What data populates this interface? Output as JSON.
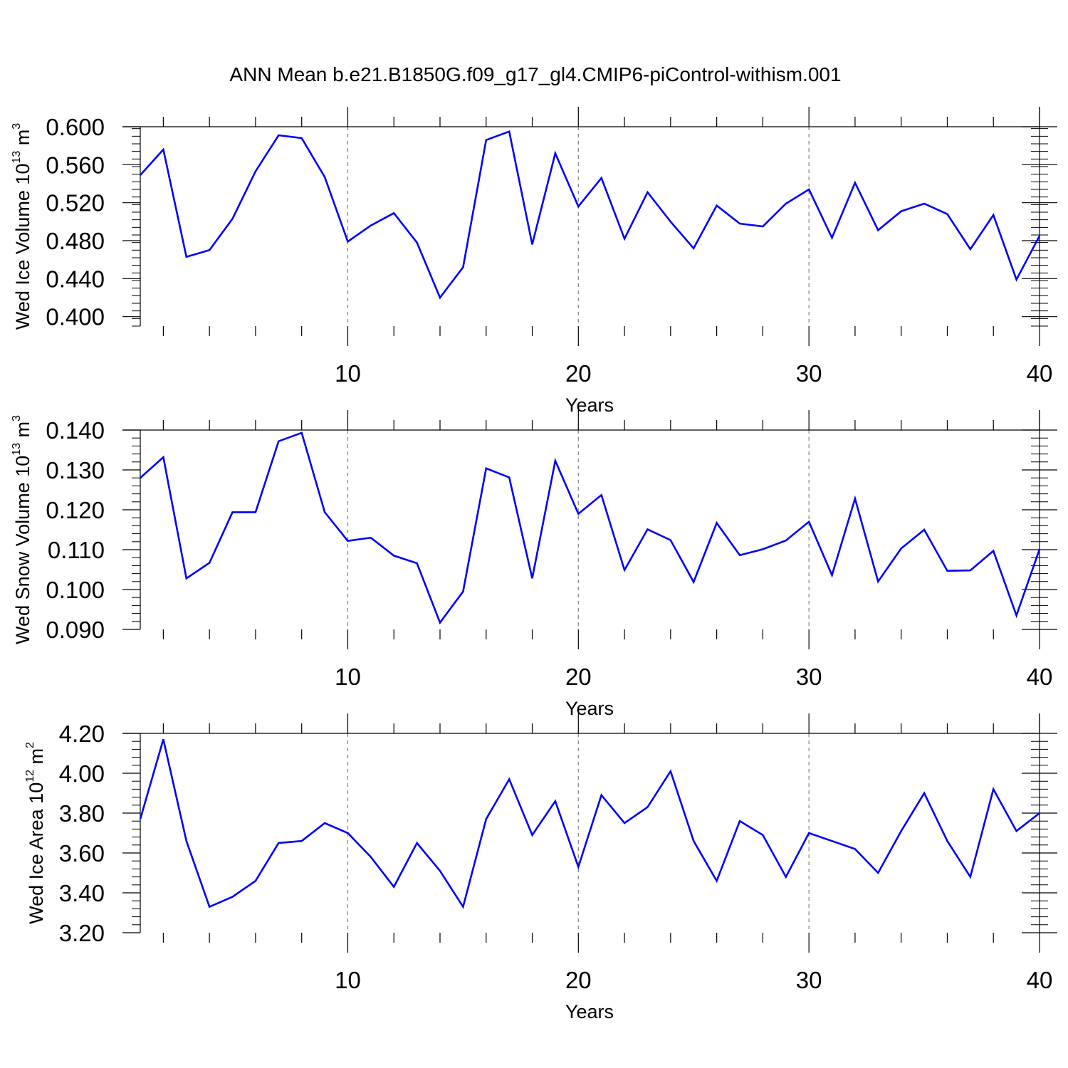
{
  "figure_title": "ANN Mean b.e21.B1850G.f09_g17_gl4.CMIP6-piControl-withism.001",
  "colors": {
    "line": "#0000ff",
    "axis": "#000000",
    "grid": "#808080",
    "background": "#ffffff"
  },
  "chart_data": [
    {
      "type": "line",
      "title": "ANN Mean b.e21.B1850G.f09_g17_gl4.CMIP6-piControl-withism.001",
      "xlabel": "Years",
      "ylabel": {
        "base": "Wed Ice Volume 10",
        "exp": "13",
        "unit": " m",
        "unit_exp": "3"
      },
      "xlim": [
        1,
        40
      ],
      "ylim": [
        0.39,
        0.6
      ],
      "xticks": [
        10,
        20,
        30,
        40
      ],
      "xtick_labels": [
        "10",
        "20",
        "30",
        "40"
      ],
      "yticks": [
        0.4,
        0.44,
        0.48,
        0.52,
        0.56,
        0.6
      ],
      "ytick_labels": [
        "0.400",
        "0.440",
        "0.480",
        "0.520",
        "0.560",
        "0.600"
      ],
      "grid": "dashed vertical at major x ticks",
      "series": [
        {
          "color": "#0000ff",
          "x": [
            1,
            2,
            3,
            4,
            5,
            6,
            7,
            8,
            9,
            10,
            11,
            12,
            13,
            14,
            15,
            16,
            17,
            18,
            19,
            20,
            21,
            22,
            23,
            24,
            25,
            26,
            27,
            28,
            29,
            30,
            31,
            32,
            33,
            34,
            35,
            36,
            37,
            38,
            39,
            40
          ],
          "values": [
            0.549,
            0.576,
            0.463,
            0.47,
            0.503,
            0.553,
            0.591,
            0.588,
            0.547,
            0.479,
            0.496,
            0.509,
            0.478,
            0.42,
            0.452,
            0.586,
            0.595,
            0.476,
            0.572,
            0.516,
            0.546,
            0.482,
            0.531,
            0.5,
            0.472,
            0.517,
            0.498,
            0.495,
            0.519,
            0.534,
            0.483,
            0.541,
            0.491,
            0.511,
            0.519,
            0.508,
            0.471,
            0.507,
            0.439,
            0.485
          ]
        }
      ]
    },
    {
      "type": "line",
      "xlabel": "Years",
      "ylabel": {
        "base": "Wed Snow Volume 10",
        "exp": "13",
        "unit": " m",
        "unit_exp": "3"
      },
      "xlim": [
        1,
        40
      ],
      "ylim": [
        0.09,
        0.14
      ],
      "xticks": [
        10,
        20,
        30,
        40
      ],
      "xtick_labels": [
        "10",
        "20",
        "30",
        "40"
      ],
      "yticks": [
        0.09,
        0.1,
        0.11,
        0.12,
        0.13,
        0.14
      ],
      "ytick_labels": [
        "0.090",
        "0.100",
        "0.110",
        "0.120",
        "0.130",
        "0.140"
      ],
      "grid": "dashed vertical at major x ticks",
      "series": [
        {
          "color": "#0000ff",
          "x": [
            1,
            2,
            3,
            4,
            5,
            6,
            7,
            8,
            9,
            10,
            11,
            12,
            13,
            14,
            15,
            16,
            17,
            18,
            19,
            20,
            21,
            22,
            23,
            24,
            25,
            26,
            27,
            28,
            29,
            30,
            31,
            32,
            33,
            34,
            35,
            36,
            37,
            38,
            39,
            40
          ],
          "values": [
            0.128,
            0.1332,
            0.1028,
            0.1067,
            0.1194,
            0.1194,
            0.1372,
            0.1393,
            0.1194,
            0.1122,
            0.113,
            0.1085,
            0.1066,
            0.0917,
            0.0995,
            0.1304,
            0.1281,
            0.1028,
            0.1323,
            0.119,
            0.1237,
            0.1049,
            0.1151,
            0.1124,
            0.1019,
            0.1167,
            0.1086,
            0.1101,
            0.1123,
            0.117,
            0.1036,
            0.1228,
            0.102,
            0.1103,
            0.115,
            0.1047,
            0.1048,
            0.1097,
            0.0935,
            0.1101
          ]
        }
      ]
    },
    {
      "type": "line",
      "xlabel": "Years",
      "ylabel": {
        "base": "Wed Ice Area 10",
        "exp": "12",
        "unit": " m",
        "unit_exp": "2"
      },
      "xlim": [
        1,
        40
      ],
      "ylim": [
        3.2,
        4.2
      ],
      "xticks": [
        10,
        20,
        30,
        40
      ],
      "xtick_labels": [
        "10",
        "20",
        "30",
        "40"
      ],
      "yticks": [
        3.2,
        3.4,
        3.6,
        3.8,
        4.0,
        4.2
      ],
      "ytick_labels": [
        "3.20",
        "3.40",
        "3.60",
        "3.80",
        "4.00",
        "4.20"
      ],
      "grid": "dashed vertical at major x ticks",
      "series": [
        {
          "color": "#0000ff",
          "x": [
            1,
            2,
            3,
            4,
            5,
            6,
            7,
            8,
            9,
            10,
            11,
            12,
            13,
            14,
            15,
            16,
            17,
            18,
            19,
            20,
            21,
            22,
            23,
            24,
            25,
            26,
            27,
            28,
            29,
            30,
            31,
            32,
            33,
            34,
            35,
            36,
            37,
            38,
            39,
            40
          ],
          "values": [
            3.77,
            4.17,
            3.66,
            3.33,
            3.38,
            3.46,
            3.65,
            3.66,
            3.75,
            3.7,
            3.58,
            3.43,
            3.65,
            3.51,
            3.33,
            3.77,
            3.97,
            3.69,
            3.86,
            3.53,
            3.89,
            3.75,
            3.83,
            4.01,
            3.66,
            3.46,
            3.76,
            3.69,
            3.48,
            3.7,
            3.66,
            3.62,
            3.5,
            3.71,
            3.9,
            3.66,
            3.48,
            3.92,
            3.71,
            3.8
          ]
        }
      ]
    }
  ]
}
